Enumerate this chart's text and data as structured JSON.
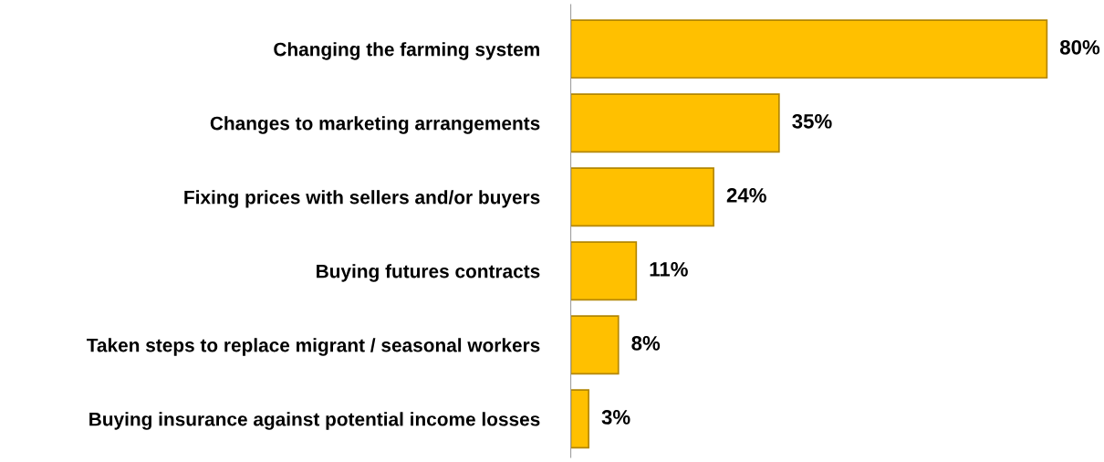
{
  "chart_data": {
    "type": "bar",
    "orientation": "horizontal",
    "categories": [
      "Changing the farming system",
      "Changes to marketing arrangements",
      "Fixing prices with sellers and/or buyers",
      "Buying futures contracts",
      "Taken steps to replace migrant / seasonal workers",
      "Buying insurance against potential income losses"
    ],
    "values": [
      80,
      35,
      24,
      11,
      8,
      3
    ],
    "value_labels": [
      "80%",
      "35%",
      "24%",
      "11%",
      "8%",
      "3%"
    ],
    "color": "#ffc000",
    "grid": false,
    "legend": false,
    "tick_labels": "y"
  }
}
